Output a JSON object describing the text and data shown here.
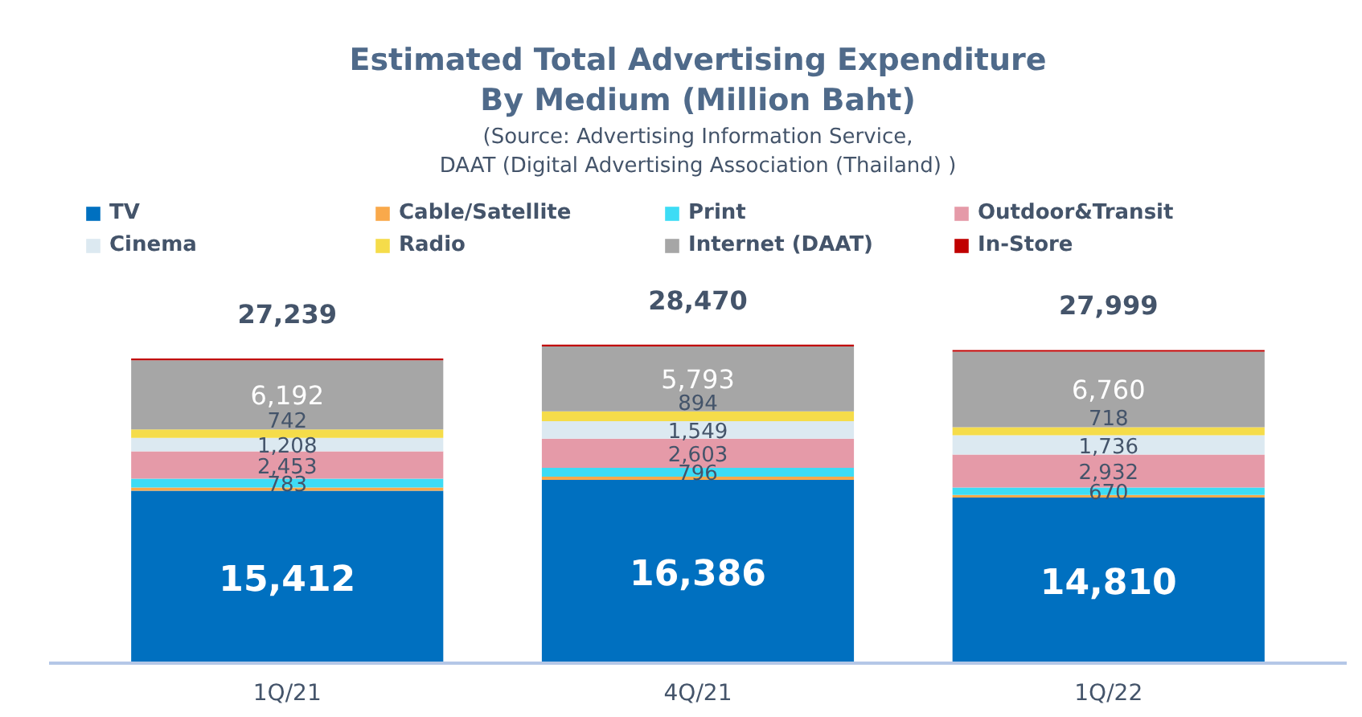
{
  "chart_data": {
    "type": "bar",
    "stacked": true,
    "title": "Estimated Total Advertising Expenditure\nBy Medium (Million Baht)",
    "annotations": [
      "(Source: Advertising Information Service,\nDAAT (Digital Advertising Association (Thailand) )"
    ],
    "categories": [
      "1Q/21",
      "4Q/21",
      "1Q/22"
    ],
    "series": [
      {
        "name": "TV",
        "color": "#0070c0",
        "values": [
          15412,
          16386,
          14810
        ],
        "value_labels": [
          "15,412",
          "16,386",
          "14,810"
        ]
      },
      {
        "name": "Cable/Satellite",
        "color": "#f9a94b",
        "values": [
          290,
          290,
          230
        ],
        "value_labels": [
          null,
          null,
          null
        ]
      },
      {
        "name": "Print",
        "color": "#3ddcf5",
        "values": [
          783,
          796,
          670
        ],
        "value_labels": [
          "783",
          "796",
          "670"
        ]
      },
      {
        "name": "Outdoor&Transit",
        "color": "#e59aa8",
        "values": [
          2453,
          2603,
          2932
        ],
        "value_labels": [
          "2,453",
          "2,603",
          "2,932"
        ]
      },
      {
        "name": "Cinema",
        "color": "#dce9f1",
        "values": [
          1208,
          1549,
          1736
        ],
        "value_labels": [
          "1,208",
          "1,549",
          "1,736"
        ]
      },
      {
        "name": "Radio",
        "color": "#f5dc4a",
        "values": [
          742,
          894,
          718
        ],
        "value_labels": [
          "742",
          "894",
          "718"
        ]
      },
      {
        "name": "Internet (DAAT)",
        "color": "#a6a6a6",
        "values": [
          6192,
          5793,
          6760
        ],
        "value_labels": [
          "6,192",
          "5,793",
          "6,760"
        ]
      },
      {
        "name": "In-Store",
        "color": "#c00000",
        "values": [
          159,
          159,
          143
        ],
        "value_labels": [
          null,
          null,
          null
        ]
      }
    ],
    "totals": [
      "27,239",
      "28,470",
      "27,999"
    ],
    "legend": "top"
  }
}
